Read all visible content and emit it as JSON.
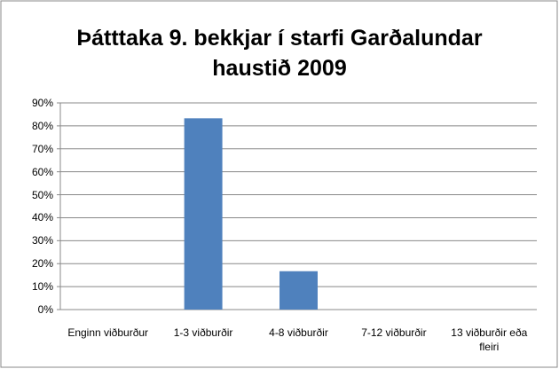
{
  "chart_data": {
    "type": "bar",
    "title": "Þátttaka 9. bekkjar í starfi Garðalundar haustið 2009",
    "categories": [
      "Enginn viðburður",
      "1-3 viðburðir",
      "4-8 viðburðir",
      "7-12 viðburðir",
      "13 viðburðir eða fleiri"
    ],
    "values": [
      0,
      83.3,
      16.7,
      0,
      0
    ],
    "color": "#4f81bd",
    "ylim": [
      0,
      90
    ],
    "yticks": [
      {
        "value": 0,
        "label": "0%"
      },
      {
        "value": 10,
        "label": "10%"
      },
      {
        "value": 20,
        "label": "20%"
      },
      {
        "value": 30,
        "label": "30%"
      },
      {
        "value": 40,
        "label": "40%"
      },
      {
        "value": 50,
        "label": "50%"
      },
      {
        "value": 60,
        "label": "60%"
      },
      {
        "value": 70,
        "label": "70%"
      },
      {
        "value": 80,
        "label": "80%"
      },
      {
        "value": 90,
        "label": "90%"
      }
    ],
    "grid": true
  }
}
